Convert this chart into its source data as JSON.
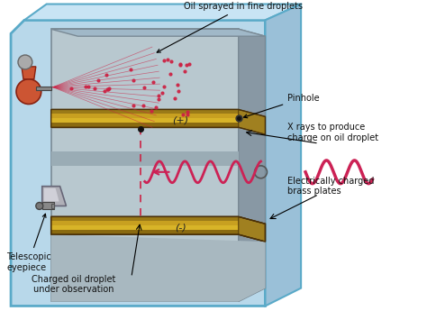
{
  "bg_color": "#ffffff",
  "labels": {
    "oil_spray": "Oil sprayed in fine droplets",
    "pinhole": "Pinhole",
    "xray": "X rays to produce\ncharge on oil droplet",
    "brass": "Electrically charged\nbrass plates",
    "telescope": "Telescopic\neyepiece",
    "droplet": "Charged oil droplet\nunder observation",
    "plus": "(+)",
    "minus": "(-)"
  },
  "figsize": [
    4.74,
    3.55
  ],
  "dpi": 100
}
